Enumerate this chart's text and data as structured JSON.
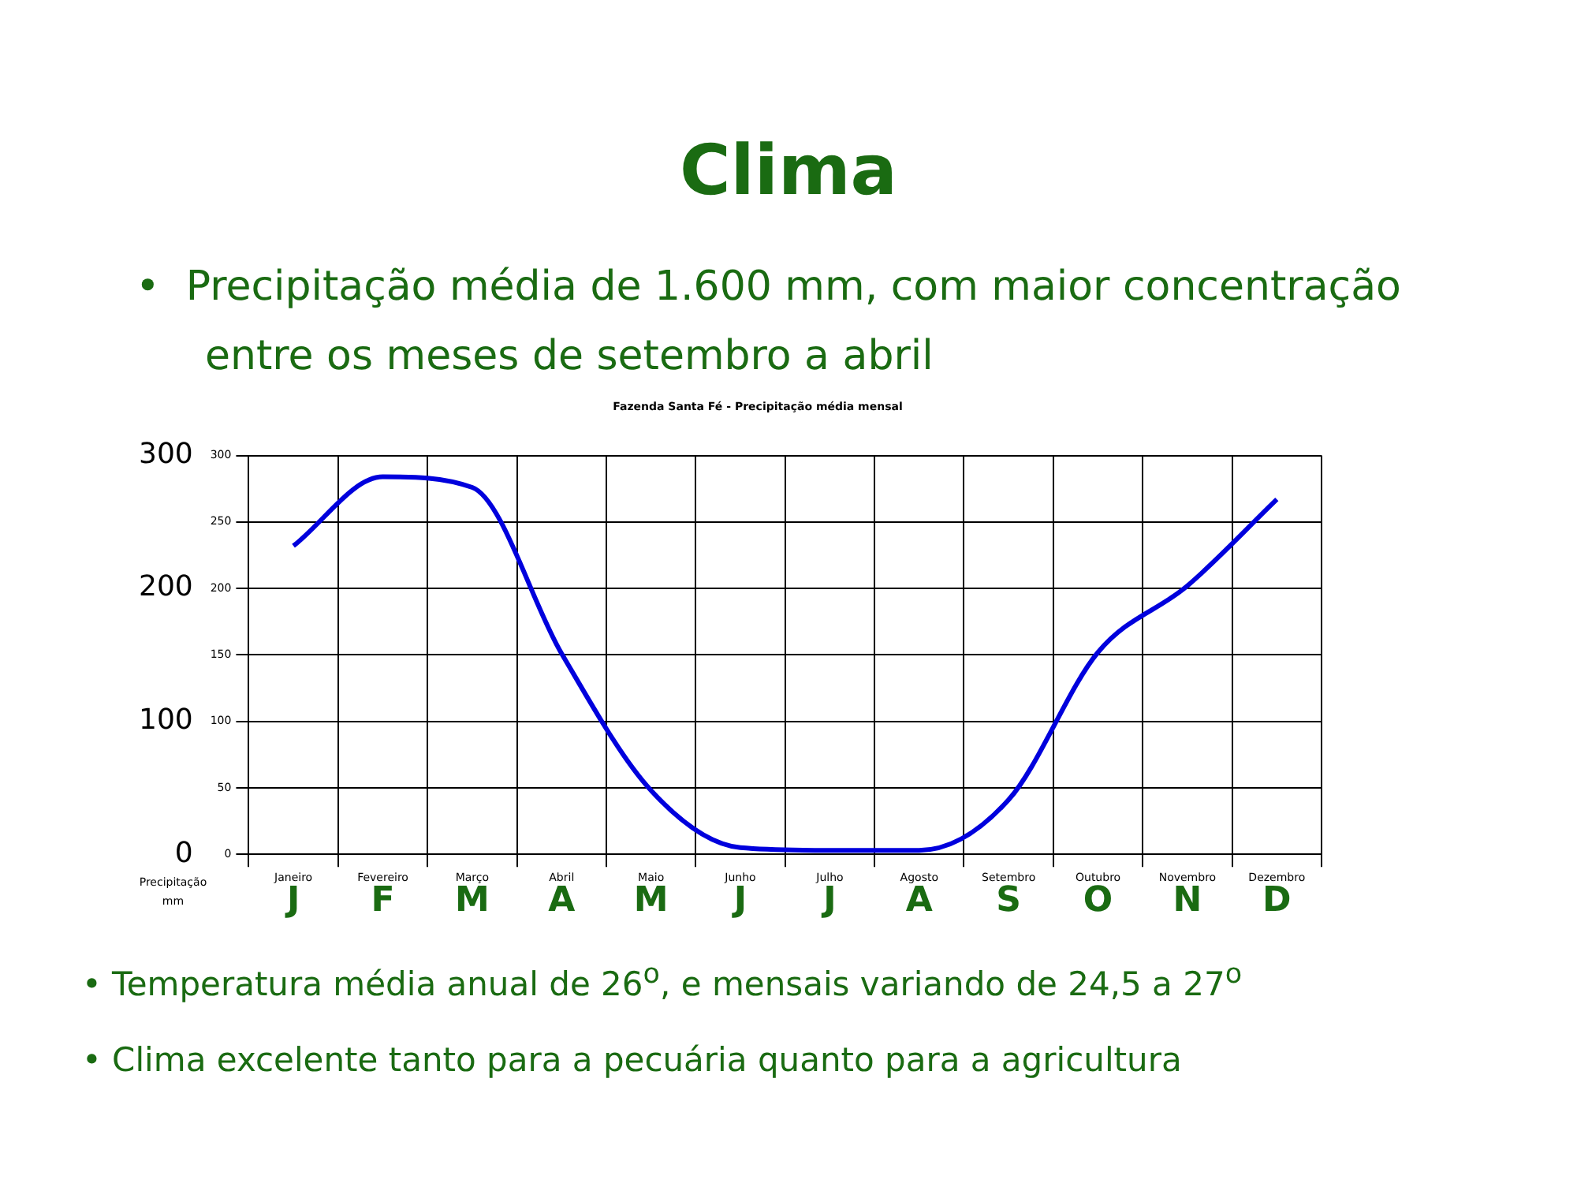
{
  "chart_data": {
    "type": "line",
    "title": "Clima",
    "subtitle": "•  Precipitação média de 1.600 mm, com maior concentração entre os meses de setembro a abril",
    "categories": [
      "Janeiro",
      "Fevereiro",
      "Março",
      "Abril",
      "Maio",
      "Junho",
      "Julho",
      "Agosto",
      "Setembro",
      "Outubro",
      "Novembro",
      "Dezembro"
    ],
    "series": [
      {
        "color": "#0000dd",
        "values": [
          232,
          284,
          276,
          151,
          48,
          5,
          3,
          3,
          41,
          152,
          202,
          267
        ]
      }
    ],
    "ylim": [
      0,
      300
    ],
    "yticks": [
      0,
      50,
      100,
      150,
      200,
      250,
      300
    ],
    "y2lim": [
      0,
      300
    ],
    "y2ticks": [
      0,
      100,
      200,
      300
    ],
    "grid": true,
    "marker": "none",
    "line_style": "solid",
    "annotations": [
      "Fazenda Santa Fé - Precipitação média mensal",
      "Precipitação mm",
      "J",
      "F",
      "M",
      "A",
      "M",
      "J",
      "J",
      "A",
      "S",
      "O",
      "N",
      "D",
      "• Temperatura média anual de 26$^{o}$, e mensais variando de 24,5 a 27$^{o}$",
      "• Clima excelente tanto para a pecuária quanto para a agricultura"
    ]
  }
}
